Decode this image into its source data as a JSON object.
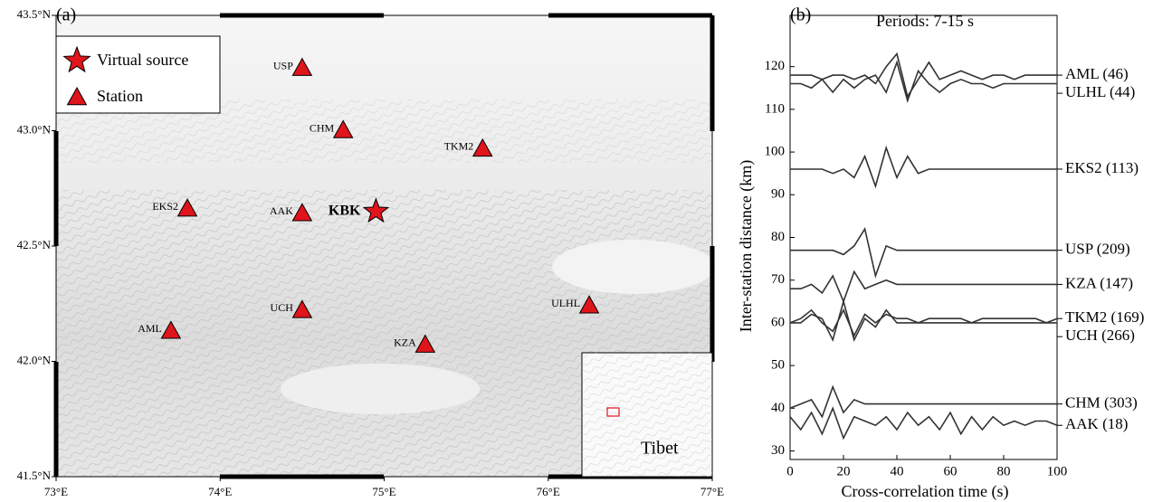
{
  "chart_data": [
    {
      "type": "map",
      "panel_label": "(a)",
      "xlim": [
        73,
        77
      ],
      "ylim": [
        41.5,
        43.5
      ],
      "xticks": [
        {
          "value": 73,
          "label": "73°E"
        },
        {
          "value": 74,
          "label": "74°E"
        },
        {
          "value": 75,
          "label": "75°E"
        },
        {
          "value": 76,
          "label": "76°E"
        },
        {
          "value": 77,
          "label": "77°E"
        }
      ],
      "yticks": [
        {
          "value": 41.5,
          "label": "41.5°N"
        },
        {
          "value": 42,
          "label": "42.0°N"
        },
        {
          "value": 42.5,
          "label": "42.5°N"
        },
        {
          "value": 43,
          "label": "43.0°N"
        },
        {
          "value": 43.5,
          "label": "43.5°N"
        }
      ],
      "series": [
        {
          "name": "Virtual source",
          "marker": "star",
          "color": "#e0141b",
          "labels": [
            "KBK"
          ],
          "x": [
            74.95
          ],
          "values": [
            42.65
          ]
        },
        {
          "name": "Station",
          "marker": "triangle",
          "color": "#e0141b",
          "labels": [
            "USP",
            "CHM",
            "TKM2",
            "EKS2",
            "AAK",
            "UCH",
            "AML",
            "KZA",
            "ULHL"
          ],
          "x": [
            74.5,
            74.75,
            75.6,
            73.8,
            74.5,
            74.5,
            73.7,
            75.25,
            76.25
          ],
          "values": [
            43.27,
            43.0,
            42.92,
            42.66,
            42.64,
            42.22,
            42.13,
            42.07,
            42.24
          ]
        }
      ],
      "inset_label": "Tibet"
    },
    {
      "type": "line",
      "panel_label": "(b)",
      "title": "Periods: 7-15 s",
      "x_label": "Cross-correlation time (s)",
      "y_label": "Inter-station distance (km)",
      "xlim": [
        0,
        100
      ],
      "ylim": [
        28,
        132
      ],
      "xticks": [
        0,
        20,
        40,
        60,
        80,
        100
      ],
      "yticks": [
        30,
        40,
        50,
        60,
        70,
        80,
        90,
        100,
        110,
        120
      ],
      "x": [
        0,
        4,
        8,
        12,
        16,
        20,
        24,
        28,
        32,
        36,
        40,
        44,
        48,
        52,
        56,
        60,
        64,
        68,
        72,
        76,
        80,
        84,
        88,
        92,
        96,
        100
      ],
      "series": [
        {
          "name": "AML (46)",
          "color": "#333333",
          "values": [
            118,
            118,
            118,
            117,
            118,
            118,
            117,
            118,
            116,
            120,
            123,
            113,
            117,
            121,
            117,
            118,
            119,
            118,
            117,
            118,
            118,
            117,
            118,
            118,
            118,
            118
          ]
        },
        {
          "name": "ULHL (44)",
          "color": "#333333",
          "values": [
            116,
            116,
            115,
            117,
            114,
            117,
            115,
            117,
            118,
            114,
            121,
            112,
            119,
            116,
            114,
            116,
            117,
            116,
            116,
            115,
            116,
            116,
            116,
            116,
            116,
            116
          ]
        },
        {
          "name": "EKS2 (113)",
          "color": "#333333",
          "values": [
            96,
            96,
            96,
            96,
            95,
            96,
            94,
            99,
            92,
            101,
            94,
            99,
            95,
            96,
            96,
            96,
            96,
            96,
            96,
            96,
            96,
            96,
            96,
            96,
            96,
            96
          ]
        },
        {
          "name": "USP (209)",
          "color": "#333333",
          "values": [
            77,
            77,
            77,
            77,
            77,
            76,
            78,
            82,
            71,
            78,
            77,
            77,
            77,
            77,
            77,
            77,
            77,
            77,
            77,
            77,
            77,
            77,
            77,
            77,
            77,
            77
          ]
        },
        {
          "name": "KZA (147)",
          "color": "#333333",
          "values": [
            68,
            68,
            69,
            67,
            71,
            65,
            72,
            68,
            69,
            70,
            69,
            69,
            69,
            69,
            69,
            69,
            69,
            69,
            69,
            69,
            69,
            69,
            69,
            69,
            69,
            69
          ]
        },
        {
          "name": "TKM2 (169)",
          "color": "#333333",
          "values": [
            60,
            61,
            63,
            60,
            58,
            63,
            57,
            62,
            60,
            62,
            61,
            61,
            60,
            61,
            61,
            61,
            61,
            60,
            61,
            61,
            61,
            61,
            61,
            61,
            60,
            61
          ]
        },
        {
          "name": "UCH (266)",
          "color": "#333333",
          "values": [
            60,
            60,
            62,
            61,
            56,
            65,
            56,
            61,
            59,
            63,
            60,
            60,
            60,
            60,
            60,
            60,
            60,
            60,
            60,
            60,
            60,
            60,
            60,
            60,
            60,
            60
          ]
        },
        {
          "name": "CHM (303)",
          "color": "#333333",
          "values": [
            40,
            41,
            42,
            38,
            45,
            39,
            42,
            41,
            41,
            41,
            41,
            41,
            41,
            41,
            41,
            41,
            41,
            41,
            41,
            41,
            41,
            41,
            41,
            41,
            41,
            41
          ]
        },
        {
          "name": "AAK (18)",
          "color": "#333333",
          "values": [
            38,
            35,
            39,
            34,
            40,
            33,
            38,
            37,
            36,
            38,
            35,
            39,
            36,
            38,
            35,
            39,
            34,
            38,
            35,
            38,
            36,
            37,
            36,
            37,
            37,
            36
          ]
        }
      ]
    }
  ]
}
